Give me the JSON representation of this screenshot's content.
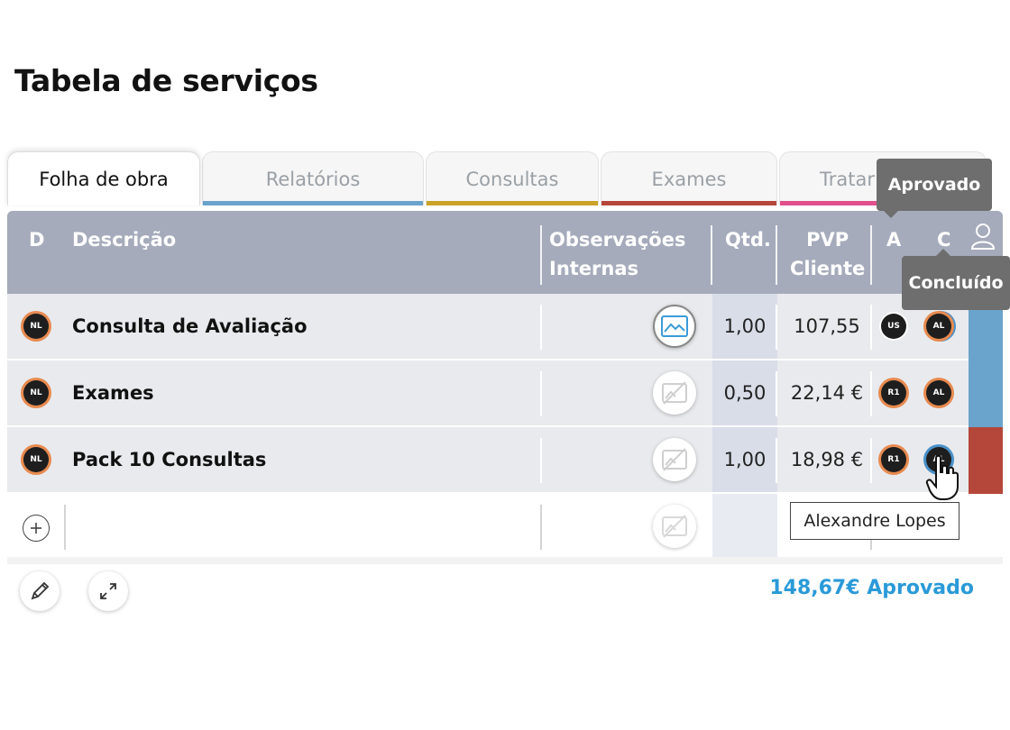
{
  "title": "Tabela de serviços",
  "tabs": [
    {
      "label": "Folha de obra",
      "active": true,
      "bar_color": ""
    },
    {
      "label": "Relatórios",
      "active": false,
      "bar_color": "#6aa3cc"
    },
    {
      "label": "Consultas",
      "active": false,
      "bar_color": "#c9a227"
    },
    {
      "label": "Exames",
      "active": false,
      "bar_color": "#b5473a"
    },
    {
      "label": "Tratar",
      "active": false,
      "bar_color": "#e0508a"
    }
  ],
  "columns": {
    "d": "D",
    "descricao": "Descrição",
    "observacoes_line1": "Observações",
    "observacoes_line2": "Internas",
    "qtd": "Qtd.",
    "pvp_line1": "PVP",
    "pvp_line2": "Cliente",
    "a": "A",
    "c": "C"
  },
  "rows": [
    {
      "d_badge": "NL",
      "descricao": "Consulta de Avaliação",
      "qtd": "1,00",
      "pvp": "107,55",
      "a_badge": "US",
      "c_badge": "AL",
      "obs_active": true,
      "stripe_color": "#6aa3cc"
    },
    {
      "d_badge": "NL",
      "descricao": "Exames",
      "qtd": "0,50",
      "pvp": "22,14 €",
      "a_badge": "R1",
      "c_badge": "AL",
      "obs_active": false,
      "stripe_color": "#6aa3cc"
    },
    {
      "d_badge": "NL",
      "descricao": "Pack 10 Consultas",
      "qtd": "1,00",
      "pvp": "18,98 €",
      "a_badge": "R1",
      "c_badge": "AL",
      "obs_active": false,
      "stripe_color": "#b5473a"
    }
  ],
  "total": "148,67€ Aprovado",
  "tooltips": {
    "aprovado": "Aprovado",
    "concluido": "Concluído",
    "user": "Alexandre Lopes"
  },
  "icons": {
    "add": "plus-icon",
    "edit": "pencil-icon",
    "expand": "expand-icon",
    "user": "user-icon",
    "image": "image-icon",
    "no_image": "no-image-icon"
  }
}
